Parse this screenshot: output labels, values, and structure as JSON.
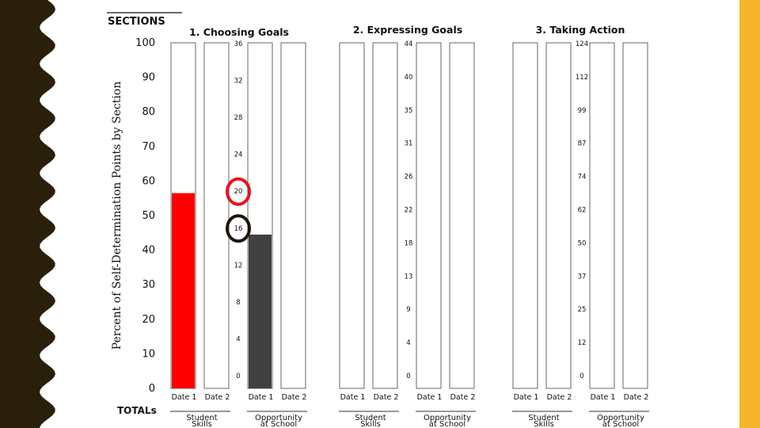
{
  "slide": {
    "left_band_color": "#2a1f0a",
    "right_band_color": "#f4b52a"
  },
  "chart_data": {
    "type": "bar",
    "sections_label": "SECTIONS",
    "totals_label": "TOTALs",
    "ylabel": "Percent of Self-Determination Points by Section",
    "percent_ticks": [
      "100",
      "90",
      "80",
      "70",
      "60",
      "50",
      "40",
      "30",
      "20",
      "10",
      "0"
    ],
    "ylim": [
      0,
      100
    ],
    "grid": false,
    "sections": [
      {
        "title": "1. Choosing Goals",
        "point_ticks": [
          "36",
          "32",
          "28",
          "24",
          "20",
          "16",
          "12",
          "8",
          "4",
          "0"
        ],
        "groups": [
          {
            "label": [
              "Student",
              "Skills"
            ],
            "bars": [
              {
                "date": "Date 1",
                "percent": 56.5,
                "color": "#ff0000"
              },
              {
                "date": "Date 2",
                "percent": null,
                "color": "#ff0000"
              }
            ]
          },
          {
            "label": [
              "Opportunity",
              "at School"
            ],
            "bars": [
              {
                "date": "Date 1",
                "percent": 44.5,
                "color": "#404040"
              },
              {
                "date": "Date 2",
                "percent": null,
                "color": "#404040"
              }
            ]
          }
        ]
      },
      {
        "title": "2. Expressing Goals",
        "point_ticks": [
          "44",
          "40",
          "35",
          "31",
          "26",
          "22",
          "18",
          "13",
          "9",
          "4",
          "0"
        ],
        "groups": [
          {
            "label": [
              "Student",
              "Skills"
            ],
            "bars": [
              {
                "date": "Date 1",
                "percent": null,
                "color": "#ff0000"
              },
              {
                "date": "Date 2",
                "percent": null,
                "color": "#ff0000"
              }
            ]
          },
          {
            "label": [
              "Opportunity",
              "at School"
            ],
            "bars": [
              {
                "date": "Date 1",
                "percent": null,
                "color": "#404040"
              },
              {
                "date": "Date 2",
                "percent": null,
                "color": "#404040"
              }
            ]
          }
        ]
      },
      {
        "title": "3. Taking Action",
        "point_ticks": [
          "124",
          "112",
          "99",
          "87",
          "74",
          "62",
          "50",
          "37",
          "25",
          "12",
          "0"
        ],
        "groups": [
          {
            "label": [
              "Student",
              "Skills"
            ],
            "bars": [
              {
                "date": "Date 1",
                "percent": null,
                "color": "#ff0000"
              },
              {
                "date": "Date 2",
                "percent": null,
                "color": "#ff0000"
              }
            ]
          },
          {
            "label": [
              "Opportunity",
              "at School"
            ],
            "bars": [
              {
                "date": "Date 1",
                "percent": null,
                "color": "#404040"
              },
              {
                "date": "Date 2",
                "percent": null,
                "color": "#404040"
              }
            ]
          }
        ]
      }
    ],
    "annotations": [
      {
        "section": 0,
        "tick": "20",
        "shape": "circle",
        "color": "#e8141a"
      },
      {
        "section": 0,
        "tick": "16",
        "shape": "circle",
        "color": "#1e1408"
      }
    ]
  }
}
